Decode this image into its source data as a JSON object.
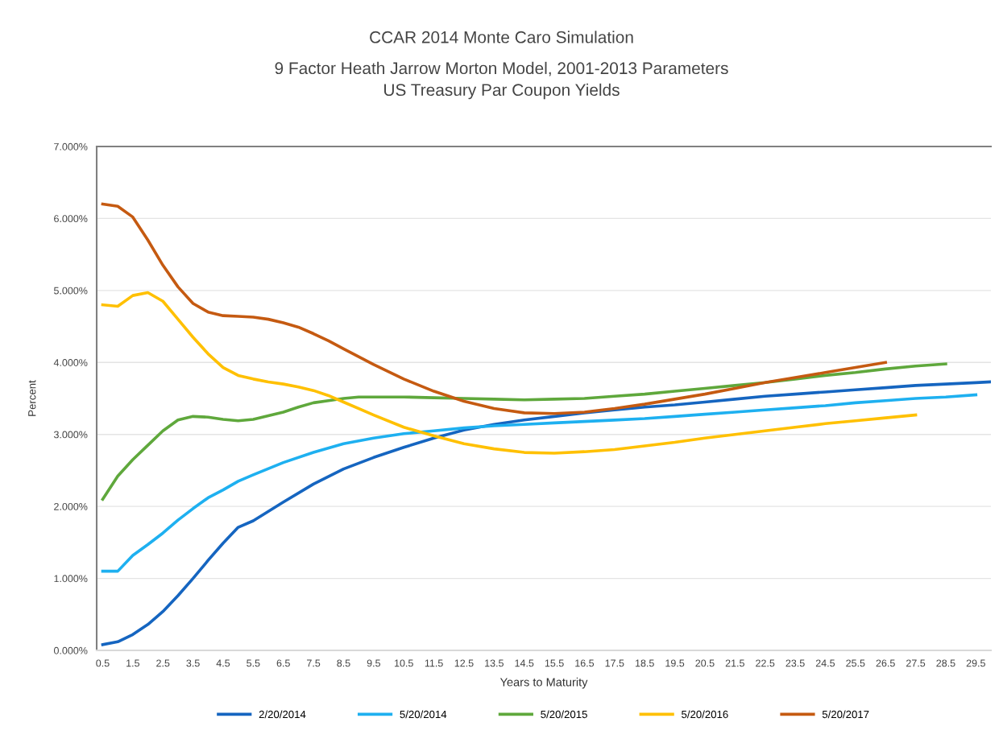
{
  "chart_data": {
    "type": "line",
    "title": "CCAR 2014 Monte Caro Simulation",
    "subtitle": "9 Factor Heath Jarrow Morton Model, 2001-2013 Parameters\nUS Treasury Par Coupon Yields",
    "xlabel": "Years to Maturity",
    "ylabel": "Percent",
    "xlim": [
      0.3,
      30
    ],
    "xticks": [
      0.5,
      1.5,
      2.5,
      3.5,
      4.5,
      5.5,
      6.5,
      7.5,
      8.5,
      9.5,
      10.5,
      11.5,
      12.5,
      13.5,
      14.5,
      15.5,
      16.5,
      17.5,
      18.5,
      19.5,
      20.5,
      21.5,
      22.5,
      23.5,
      24.5,
      25.5,
      26.5,
      27.5,
      28.5,
      29.5
    ],
    "ylim": [
      0,
      7
    ],
    "yticks": [
      {
        "value": 0,
        "label": "0.000%"
      },
      {
        "value": 1,
        "label": "1.000%"
      },
      {
        "value": 2,
        "label": "2.000%"
      },
      {
        "value": 3,
        "label": "3.000%"
      },
      {
        "value": 4,
        "label": "4.000%"
      },
      {
        "value": 5,
        "label": "5.000%"
      },
      {
        "value": 6,
        "label": "6.000%"
      },
      {
        "value": 7,
        "label": "7.000%"
      }
    ],
    "grid": "y",
    "legend": "bottom",
    "marker": "none",
    "line_style": "solid",
    "series": [
      {
        "name": "2/20/2014",
        "color": "#1565c0",
        "x": [
          0.5,
          1,
          1.5,
          2,
          2.5,
          3,
          3.5,
          4,
          4.5,
          5,
          5.5,
          6.5,
          7.5,
          8.5,
          9.5,
          10.5,
          11.5,
          12.5,
          13.5,
          14.5,
          15.5,
          16.5,
          17.5,
          18.5,
          19.5,
          20.5,
          21.5,
          22.5,
          23.5,
          24.5,
          25.5,
          26.5,
          27.5,
          28.5,
          29.5,
          30
        ],
        "values": [
          0.08,
          0.12,
          0.22,
          0.36,
          0.54,
          0.76,
          1.0,
          1.25,
          1.49,
          1.71,
          1.8,
          2.06,
          2.31,
          2.52,
          2.68,
          2.82,
          2.95,
          3.06,
          3.14,
          3.2,
          3.25,
          3.3,
          3.34,
          3.38,
          3.41,
          3.45,
          3.49,
          3.53,
          3.56,
          3.59,
          3.62,
          3.65,
          3.68,
          3.7,
          3.72,
          3.73
        ]
      },
      {
        "name": "5/20/2014",
        "color": "#1eb0f0",
        "x": [
          0.5,
          1,
          1.5,
          2,
          2.5,
          3,
          3.5,
          4,
          4.5,
          5,
          5.5,
          6.5,
          7.5,
          8.5,
          9.5,
          10.5,
          11.5,
          12.5,
          13.5,
          14.5,
          15.5,
          16.5,
          17.5,
          18.5,
          19.5,
          20.5,
          21.5,
          22.5,
          23.5,
          24.5,
          25.5,
          26.5,
          27.5,
          28.5,
          29.5
        ],
        "values": [
          1.1,
          1.1,
          1.32,
          1.47,
          1.63,
          1.81,
          1.97,
          2.12,
          2.23,
          2.35,
          2.44,
          2.61,
          2.75,
          2.87,
          2.95,
          3.01,
          3.05,
          3.09,
          3.12,
          3.14,
          3.16,
          3.18,
          3.2,
          3.22,
          3.25,
          3.28,
          3.31,
          3.34,
          3.37,
          3.4,
          3.44,
          3.47,
          3.5,
          3.52,
          3.55
        ]
      },
      {
        "name": "5/20/2015",
        "color": "#5fa83c",
        "x": [
          0.5,
          1,
          1.5,
          2,
          2.5,
          3,
          3.5,
          4,
          4.5,
          5,
          5.5,
          6,
          6.5,
          7,
          7.5,
          8,
          8.5,
          9,
          9.5,
          10.5,
          11.5,
          12.5,
          13.5,
          14.5,
          15.5,
          16.5,
          17.5,
          18.5,
          19.5,
          20.5,
          21.5,
          22.5,
          23.5,
          24.5,
          25.5,
          26.5,
          27.5,
          28.5
        ],
        "values": [
          2.1,
          2.42,
          2.65,
          2.85,
          3.05,
          3.2,
          3.25,
          3.24,
          3.21,
          3.19,
          3.21,
          3.26,
          3.31,
          3.38,
          3.44,
          3.47,
          3.5,
          3.52,
          3.52,
          3.52,
          3.51,
          3.5,
          3.49,
          3.48,
          3.49,
          3.5,
          3.53,
          3.56,
          3.6,
          3.64,
          3.68,
          3.72,
          3.77,
          3.82,
          3.86,
          3.91,
          3.95,
          3.98
        ]
      },
      {
        "name": "5/20/2016",
        "color": "#ffc000",
        "x": [
          0.5,
          1,
          1.5,
          2,
          2.5,
          3,
          3.5,
          4,
          4.5,
          5,
          5.5,
          6,
          6.5,
          7,
          7.5,
          8,
          8.5,
          9.5,
          10.5,
          11.5,
          12.5,
          13.5,
          14.5,
          15.5,
          16.5,
          17.5,
          18.5,
          19.5,
          20.5,
          21.5,
          22.5,
          23.5,
          24.5,
          25.5,
          26.5,
          27.5
        ],
        "values": [
          4.8,
          4.78,
          4.93,
          4.97,
          4.85,
          4.6,
          4.35,
          4.12,
          3.93,
          3.82,
          3.77,
          3.73,
          3.7,
          3.66,
          3.61,
          3.54,
          3.45,
          3.27,
          3.1,
          2.98,
          2.87,
          2.8,
          2.75,
          2.74,
          2.76,
          2.79,
          2.84,
          2.89,
          2.95,
          3.0,
          3.05,
          3.1,
          3.15,
          3.19,
          3.23,
          3.27
        ]
      },
      {
        "name": "5/20/2017",
        "color": "#c55a11",
        "x": [
          0.5,
          1,
          1.5,
          2,
          2.5,
          3,
          3.5,
          4,
          4.5,
          5,
          5.5,
          6,
          6.5,
          7,
          7.5,
          8,
          8.5,
          9,
          9.5,
          10.5,
          11.5,
          12.5,
          13.5,
          14.5,
          15.5,
          16.5,
          17.5,
          18.5,
          19.5,
          20.5,
          21.5,
          22.5,
          23.5,
          24.5,
          25.5,
          26.5
        ],
        "values": [
          6.2,
          6.17,
          6.02,
          5.7,
          5.35,
          5.05,
          4.82,
          4.7,
          4.65,
          4.64,
          4.63,
          4.6,
          4.55,
          4.49,
          4.4,
          4.3,
          4.19,
          4.08,
          3.97,
          3.77,
          3.6,
          3.46,
          3.36,
          3.3,
          3.29,
          3.31,
          3.36,
          3.42,
          3.49,
          3.56,
          3.64,
          3.72,
          3.79,
          3.86,
          3.93,
          4.0
        ]
      }
    ]
  }
}
